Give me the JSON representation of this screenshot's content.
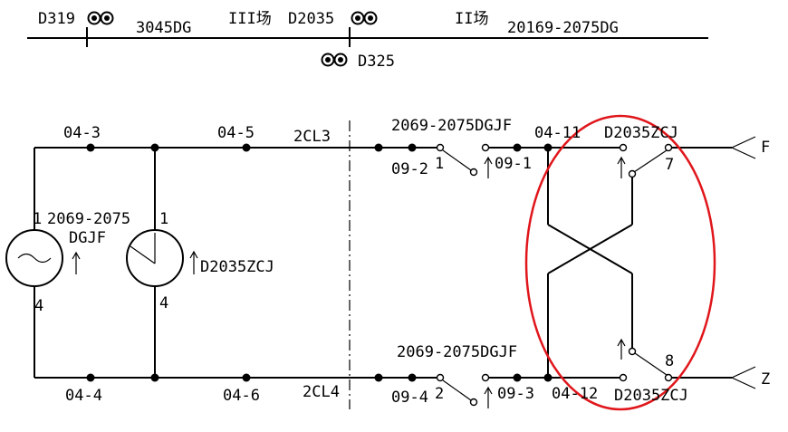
{
  "header": {
    "signal_left": "D319",
    "track_a": "3045DG",
    "yard_3": "III场",
    "signal_mid": "D2035",
    "yard_2": "II场",
    "track_b": "20169-2075DG",
    "signal_below": "D325"
  },
  "circuit": {
    "node_04_3": "04-3",
    "node_04_5": "04-5",
    "cable_top": "2CL3",
    "relay_top_label": "2069-2075DGJF",
    "node_04_11": "04-11",
    "relay_d_top": "D2035ZCJ",
    "out_f": "F",
    "node_09_2": "09-2",
    "contact_1": "1",
    "node_09_1": "09-1",
    "contact_7": "7",
    "relay_left_pin1": "1",
    "relay_left_name": "2069-2075",
    "relay_left_name2": "DGJF",
    "relay_left_pin4": "4",
    "relay_right_pin1": "1",
    "relay_right_name": "D2035ZCJ",
    "relay_right_pin4": "4",
    "relay_bot_label": "2069-2075DGJF",
    "contact_8": "8",
    "node_04_4": "04-4",
    "node_04_6": "04-6",
    "cable_bot": "2CL4",
    "node_09_4": "09-4",
    "contact_2": "2",
    "node_09_3": "09-3",
    "node_04_12": "04-12",
    "relay_d_bot": "D2035ZCJ",
    "out_z": "Z"
  },
  "colors": {
    "line": "#000000",
    "highlight": "#e0161b",
    "background": "#ffffff"
  }
}
